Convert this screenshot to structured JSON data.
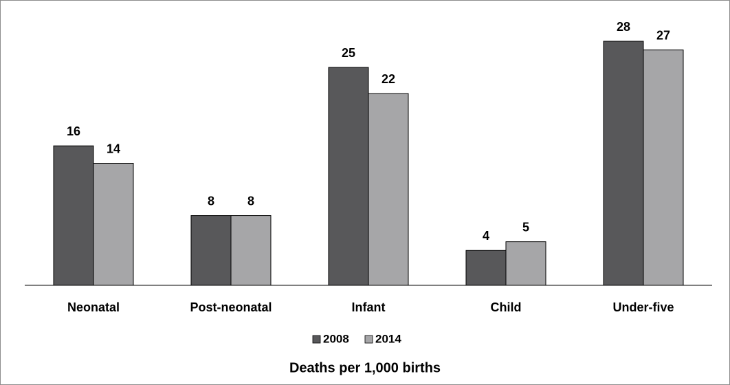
{
  "chart_data": {
    "type": "bar",
    "title": "Deaths per 1,000 births",
    "categories": [
      "Neonatal",
      "Post-neonatal",
      "Infant",
      "Child",
      "Under-five"
    ],
    "series": [
      {
        "name": "2008",
        "color": "#58585a",
        "values": [
          16,
          8,
          25,
          4,
          28
        ]
      },
      {
        "name": "2014",
        "color": "#a6a6a8",
        "values": [
          14,
          8,
          22,
          5,
          27
        ]
      }
    ]
  }
}
